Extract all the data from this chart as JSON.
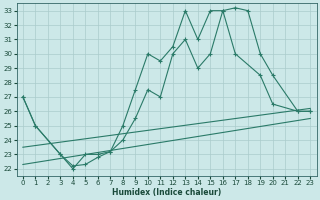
{
  "xlabel": "Humidex (Indice chaleur)",
  "xlim": [
    -0.5,
    23.5
  ],
  "ylim": [
    21.5,
    33.5
  ],
  "xticks": [
    0,
    1,
    2,
    3,
    4,
    5,
    6,
    7,
    8,
    9,
    10,
    11,
    12,
    13,
    14,
    15,
    16,
    17,
    18,
    19,
    20,
    21,
    22,
    23
  ],
  "yticks": [
    22,
    23,
    24,
    25,
    26,
    27,
    28,
    29,
    30,
    31,
    32,
    33
  ],
  "bg_color": "#cce8e8",
  "line_color": "#2a7a68",
  "grid_color": "#b8d8d8",
  "lines": [
    {
      "x": [
        0,
        1,
        3,
        4,
        5,
        6,
        7,
        8,
        9,
        10,
        11,
        12,
        13,
        14,
        15,
        16,
        17,
        18,
        19,
        20,
        22,
        23
      ],
      "y": [
        27,
        25,
        23,
        22,
        23,
        23,
        23.2,
        25,
        27.5,
        30,
        29.5,
        30.5,
        33,
        31,
        33,
        33,
        33.2,
        33,
        30,
        28.5,
        26,
        26
      ],
      "marker": true
    },
    {
      "x": [
        0,
        1,
        3,
        4,
        5,
        6,
        7,
        8,
        9,
        10,
        11,
        12,
        13,
        14,
        15,
        16,
        17,
        19,
        20,
        22,
        23
      ],
      "y": [
        27,
        25,
        23,
        22.2,
        22.3,
        22.8,
        23.2,
        24,
        25.5,
        27.5,
        27,
        30,
        31,
        29,
        30,
        33,
        30,
        28.5,
        26.5,
        26,
        26
      ],
      "marker": true
    },
    {
      "x": [
        0,
        23
      ],
      "y": [
        23.5,
        26.2
      ],
      "marker": false
    },
    {
      "x": [
        0,
        23
      ],
      "y": [
        22.3,
        25.5
      ],
      "marker": false
    }
  ]
}
